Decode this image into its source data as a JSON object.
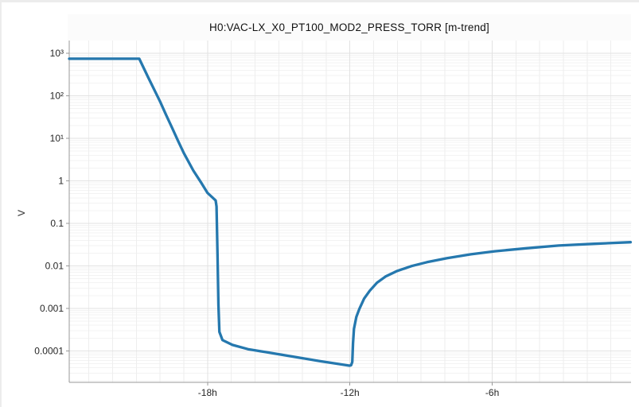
{
  "window": {
    "bg": "#ffffff",
    "border_color": "#ececec"
  },
  "chart_data": {
    "type": "line",
    "title": "H0:VAC-LX_X0_PT100_MOD2_PRESS_TORR [m-trend]",
    "ylabel": "V",
    "xlabel": "",
    "x_unit": "hours relative to now",
    "x_range": [
      -23.83,
      -0.15
    ],
    "y_log_range": [
      -4.74,
      3.3
    ],
    "grid": {
      "x_minor_step_hours": 1,
      "x_major_step_hours": 6,
      "y_major_decades": true,
      "y_log_minors": true,
      "legend": "none"
    },
    "line_color": "#2578ae",
    "axis_color": "#999999",
    "tick_text_color": "#262626",
    "grid_major_color": "#e2e2e2",
    "grid_minor_color": "#f3f3f3",
    "x_ticks": [
      {
        "t": -18,
        "label": "-18h"
      },
      {
        "t": -12,
        "label": "-12h"
      },
      {
        "t": -6,
        "label": "-6h"
      }
    ],
    "y_ticks": [
      {
        "v": 1000,
        "label": "10³"
      },
      {
        "v": 100,
        "label": "10²"
      },
      {
        "v": 10,
        "label": "10¹"
      },
      {
        "v": 1,
        "label": "1"
      },
      {
        "v": 0.1,
        "label": "0.1"
      },
      {
        "v": 0.01,
        "label": "0.01"
      },
      {
        "v": 0.001,
        "label": "0.001"
      },
      {
        "v": 0.0001,
        "label": "0.0001"
      }
    ],
    "series": [
      {
        "name": "H0:VAC-LX_X0_PT100_MOD2_PRESS_TORR",
        "units": "Torr",
        "points": [
          [
            -23.83,
            745
          ],
          [
            -20.88,
            745
          ],
          [
            -20.5,
            270
          ],
          [
            -20.0,
            73
          ],
          [
            -19.75,
            36
          ],
          [
            -19.5,
            18
          ],
          [
            -19.25,
            8.9
          ],
          [
            -19.0,
            4.5
          ],
          [
            -18.6,
            1.75
          ],
          [
            -18.25,
            0.87
          ],
          [
            -18.0,
            0.52
          ],
          [
            -17.78,
            0.4
          ],
          [
            -17.66,
            0.345
          ],
          [
            -17.62,
            0.25
          ],
          [
            -17.58,
            0.02
          ],
          [
            -17.54,
            0.0012
          ],
          [
            -17.5,
            0.00028
          ],
          [
            -17.37,
            0.00018
          ],
          [
            -16.95,
            0.000138
          ],
          [
            -16.3,
            0.00011
          ],
          [
            -15.3,
            8.9e-05
          ],
          [
            -14.3,
            7.2e-05
          ],
          [
            -13.3,
            5.8e-05
          ],
          [
            -12.45,
            4.9e-05
          ],
          [
            -12.02,
            4.5e-05
          ],
          [
            -11.95,
            4.6e-05
          ],
          [
            -11.9,
            5.5e-05
          ],
          [
            -11.87,
            0.00015
          ],
          [
            -11.83,
            0.00033
          ],
          [
            -11.73,
            0.00063
          ],
          [
            -11.6,
            0.00097
          ],
          [
            -11.4,
            0.0017
          ],
          [
            -11.16,
            0.0026
          ],
          [
            -10.86,
            0.004
          ],
          [
            -10.5,
            0.0056
          ],
          [
            -10.0,
            0.0076
          ],
          [
            -9.4,
            0.0099
          ],
          [
            -8.75,
            0.0122
          ],
          [
            -7.9,
            0.0152
          ],
          [
            -6.9,
            0.0187
          ],
          [
            -5.9,
            0.022
          ],
          [
            -4.56,
            0.026
          ],
          [
            -3.2,
            0.03
          ],
          [
            -1.7,
            0.033
          ],
          [
            -0.17,
            0.036
          ]
        ]
      }
    ]
  }
}
